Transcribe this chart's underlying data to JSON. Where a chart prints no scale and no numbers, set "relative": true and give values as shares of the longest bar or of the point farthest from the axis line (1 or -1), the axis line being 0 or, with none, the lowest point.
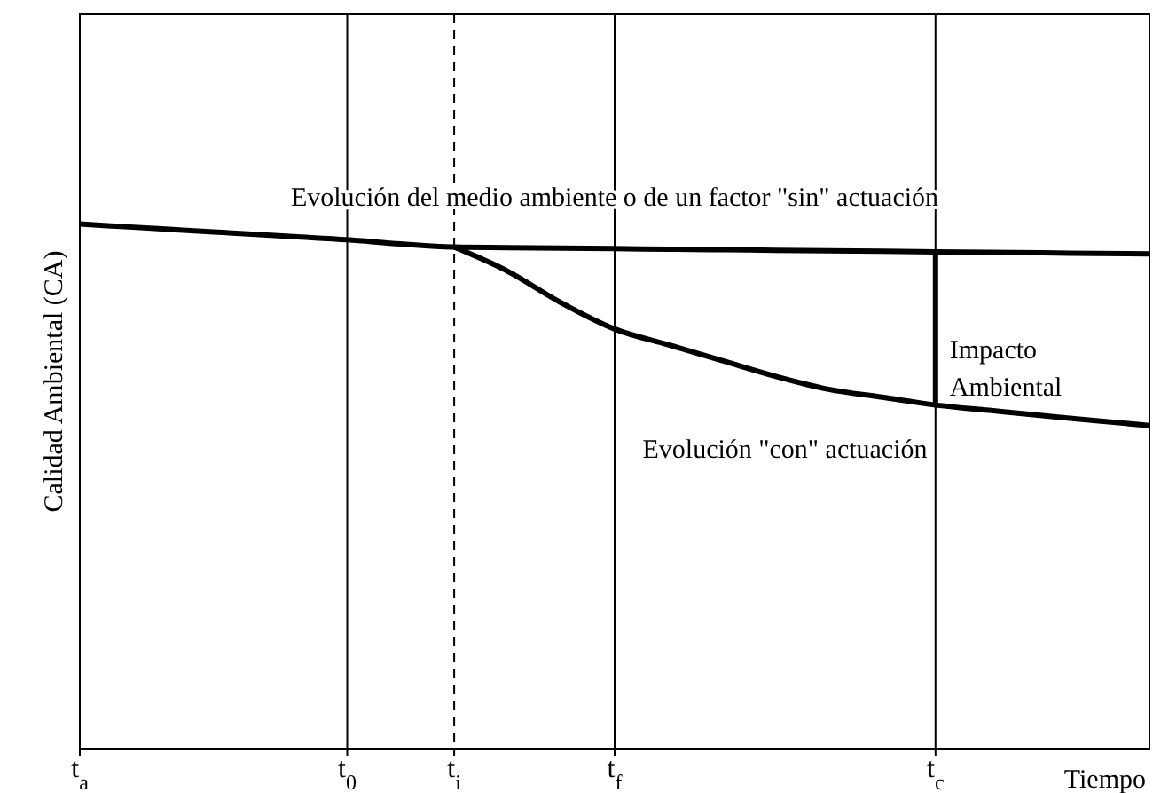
{
  "chart_data": {
    "type": "line",
    "relative": true,
    "xlabel": "Tiempo",
    "ylabel": "Calidad Ambiental (CA)",
    "categories": [
      "t$_{a}$",
      null,
      null,
      null,
      null,
      "t$_{0}$",
      null,
      "t$_{i}$",
      null,
      null,
      "t$_{f}$",
      null,
      null,
      null,
      null,
      null,
      "t$_{c}$",
      null,
      null,
      null,
      null
    ],
    "series": [
      {
        "color": "#000000",
        "values": [
          1,
          0.994,
          0.988,
          0.982,
          0.976,
          0.97,
          0.962,
          0.956,
          0.955,
          0.954,
          0.953,
          0.952,
          0.951,
          0.95,
          0.949,
          0.948,
          0.947,
          0.946,
          0.945,
          0.944,
          0.943
        ]
      },
      {
        "color": "#000000",
        "values": [
          null,
          null,
          null,
          null,
          null,
          null,
          null,
          0.956,
          0.91,
          0.85,
          0.8,
          0.77,
          0.74,
          0.71,
          0.685,
          0.67,
          0.655,
          0.645,
          0.635,
          0.625,
          0.616
        ]
      }
    ],
    "ref_lines": [
      {
        "axis": "x",
        "value": "t$_{i}$",
        "color": "#000000",
        "line_style": "dashed"
      }
    ],
    "annotations": [
      "Evolución del medio ambiente o de un factor \"sin\" actuación",
      {
        "text": "Impacto Ambiental",
        "x": "t$_{c}$",
        "y": 0.655
      },
      "Evolución \"con\" actuación"
    ],
    "grid": "x",
    "legend": false,
    "marker": "none",
    "line_style": "solid"
  }
}
